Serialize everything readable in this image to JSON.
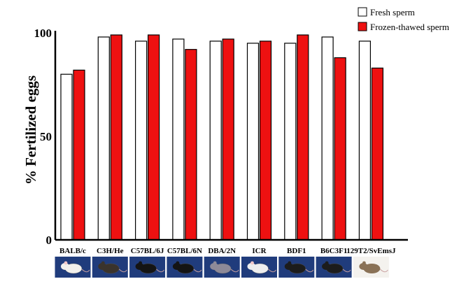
{
  "chart_data": {
    "type": "bar",
    "ylabel": "% Fertilized eggs",
    "xlabel": "",
    "ylim": [
      0,
      100
    ],
    "yticks": [
      "0",
      "50",
      "100"
    ],
    "legend_position": "top-right",
    "grid": false,
    "categories": [
      "BALB/c",
      "C3H/He",
      "C57BL/6J",
      "C57BL/6N",
      "DBA/2N",
      "ICR",
      "BDF1",
      "B6C3F1",
      "129T2/SvEmsJ"
    ],
    "category_images": [
      "white mouse",
      "dark agouti mouse",
      "black mice",
      "black mice",
      "dilute brown mouse",
      "white mouse",
      "black mouse",
      "black mouse",
      "agouti mouse"
    ],
    "series": [
      {
        "name": "Fresh sperm",
        "color": "#ffffff",
        "values": [
          80,
          98,
          96,
          97,
          96,
          95,
          95,
          98,
          96
        ]
      },
      {
        "name": "Frozen-thawed sperm",
        "color": "#ee1111",
        "values": [
          82,
          99,
          99,
          92,
          97,
          96,
          99,
          88,
          83
        ]
      }
    ]
  }
}
